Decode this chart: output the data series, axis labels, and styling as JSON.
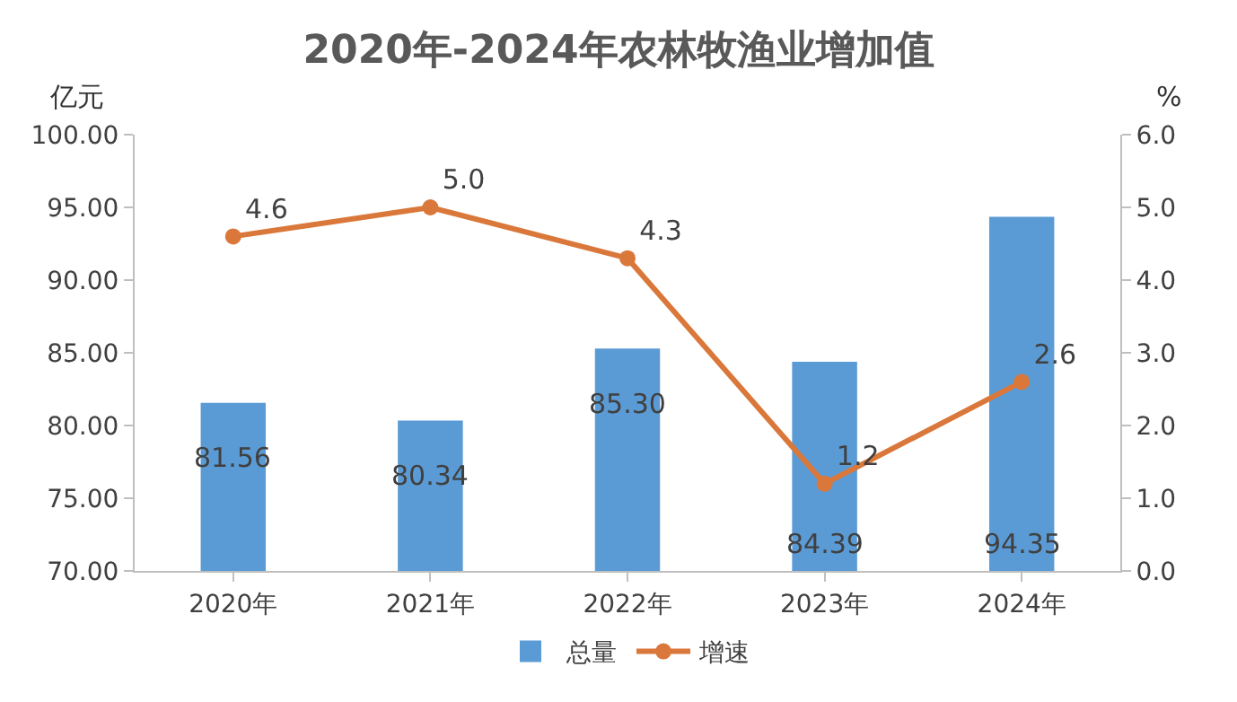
{
  "chart_data": {
    "type": "bar",
    "title": "2020年-2024年农林牧渔业增加值",
    "ylabel": "亿元",
    "y2label": "%",
    "categories": [
      "2020年",
      "2021年",
      "2022年",
      "2023年",
      "2024年"
    ],
    "series": [
      {
        "name": "总量",
        "color": "#5b9bd5",
        "values": [
          81.56,
          80.34,
          85.3,
          84.39,
          94.35
        ],
        "value_labels": [
          "81.56",
          "80.34",
          "85.30",
          "84.39",
          "94.35"
        ]
      },
      {
        "name": "增速",
        "type": "line",
        "axis": "y2",
        "color": "#d9783a",
        "values": [
          4.6,
          5.0,
          4.3,
          1.2,
          2.6
        ],
        "value_labels": [
          "4.6",
          "5.0",
          "4.3",
          "1.2",
          "2.6"
        ]
      }
    ],
    "ylim": [
      70,
      100
    ],
    "yticks": [
      {
        "value": 70,
        "label": "70.00"
      },
      {
        "value": 75,
        "label": "75.00"
      },
      {
        "value": 80,
        "label": "80.00"
      },
      {
        "value": 85,
        "label": "85.00"
      },
      {
        "value": 90,
        "label": "90.00"
      },
      {
        "value": 95,
        "label": "95.00"
      },
      {
        "value": 100,
        "label": "100.00"
      }
    ],
    "y2lim": [
      0,
      6
    ],
    "y2ticks": [
      {
        "value": 0,
        "label": "0.0"
      },
      {
        "value": 1,
        "label": "1.0"
      },
      {
        "value": 2,
        "label": "2.0"
      },
      {
        "value": 3,
        "label": "3.0"
      },
      {
        "value": 4,
        "label": "4.0"
      },
      {
        "value": 5,
        "label": "5.0"
      },
      {
        "value": 6,
        "label": "6.0"
      }
    ],
    "grid": false,
    "legend": "bottom",
    "marker": "circle",
    "line_style": "solid"
  }
}
